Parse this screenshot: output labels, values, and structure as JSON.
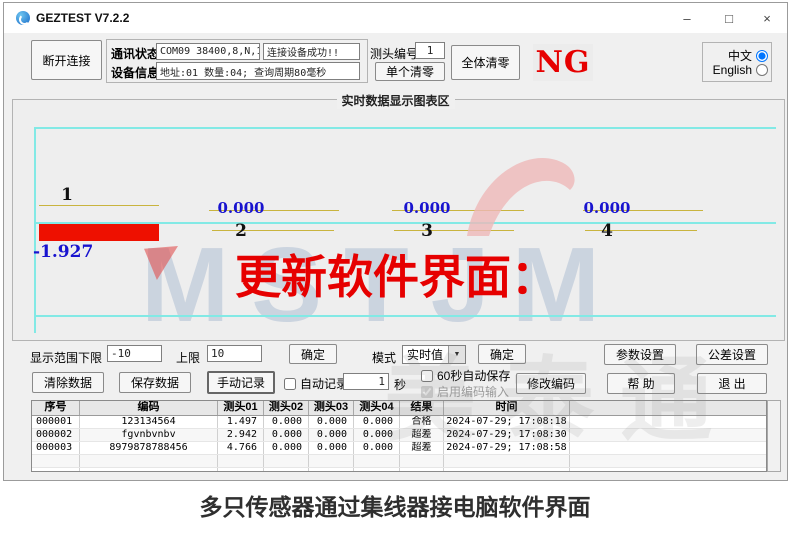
{
  "window": {
    "title": "GEZTEST V7.2.2",
    "minimize": "–",
    "maximize": "□",
    "close": "×"
  },
  "toolbar": {
    "disconnect_button": "断开连接",
    "comm_status_label": "通讯状态",
    "comm_port_value": "COM09 38400,8,N,1",
    "comm_result_value": "连接设备成功!!",
    "device_info_label": "设备信息",
    "device_info_value": "地址:01  数量:04; 查询周期80毫秒",
    "probe_no_label": "测头编号",
    "probe_no_value": "1",
    "single_zero_button": "单个清零",
    "all_zero_button": "全体清零",
    "ng_indicator": "NG"
  },
  "language": {
    "zh_label": "中文",
    "en_label": "English",
    "zh_checked": true,
    "en_checked": false
  },
  "chart": {
    "group_title": "实时数据显示图表区",
    "watermark_logo": "MSTJM",
    "watermark_cn": "美泰通",
    "overlay_text": "更新软件界面：",
    "channels": [
      {
        "no": "1",
        "value": "-1.927"
      },
      {
        "no": "2",
        "value": "0.000"
      },
      {
        "no": "3",
        "value": "0.000"
      },
      {
        "no": "4",
        "value": "0.000"
      }
    ]
  },
  "range_row": {
    "lower_label": "显示范围下限",
    "lower_value": "-10",
    "upper_label": "上限",
    "upper_value": "10",
    "confirm1_button": "确定",
    "mode_label": "模式",
    "mode_value": "实时值",
    "confirm2_button": "确定",
    "param_button": "参数设置",
    "tolerance_button": "公差设置"
  },
  "record_row": {
    "clear_button": "清除数据",
    "save_button": "保存数据",
    "manual_button": "手动记录",
    "auto_record_label": "自动记录",
    "auto_record_checked": false,
    "auto_record_value": "1",
    "seconds_label": "秒",
    "autosave_label": "60秒自动保存",
    "autosave_checked": false,
    "code_input_label": "启用编码输入",
    "code_input_checked": true,
    "modify_code_button": "修改编码",
    "help_button": "帮 助",
    "exit_button": "退 出"
  },
  "table": {
    "headers": [
      "序号",
      "编码",
      "测头01",
      "测头02",
      "测头03",
      "测头04",
      "结果",
      "时间"
    ],
    "rows": [
      [
        "000001",
        "123134564",
        "1.497",
        "0.000",
        "0.000",
        "0.000",
        "合格",
        "2024-07-29; 17:08:18"
      ],
      [
        "000002",
        "fgvnbvnbv",
        "2.942",
        "0.000",
        "0.000",
        "0.000",
        "超差",
        "2024-07-29; 17:08:30"
      ],
      [
        "000003",
        "8979878788456",
        "4.766",
        "0.000",
        "0.000",
        "0.000",
        "超差",
        "2024-07-29; 17:08:58"
      ]
    ]
  },
  "caption": "多只传感器通过集线器接电脑软件界面",
  "colors": {
    "accent_red": "#e60000",
    "bar_red": "#ee1000",
    "value_blue": "#1813cf",
    "line_cyan": "#82e9e5",
    "line_yellow": "#c9b43e",
    "watermark_blue": "#b5c3d6"
  }
}
